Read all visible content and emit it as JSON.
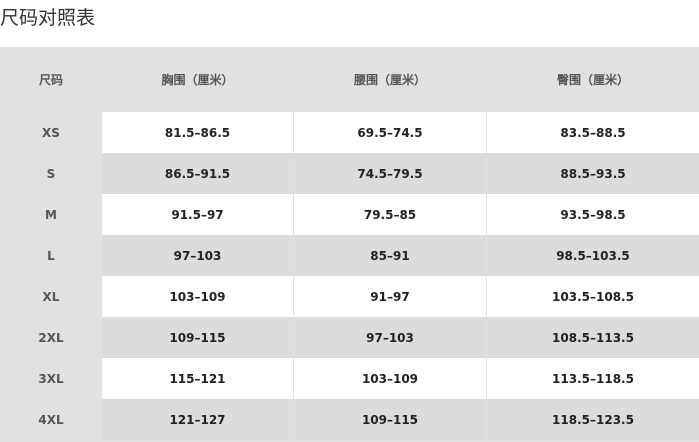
{
  "page": {
    "title": "尺码对照表"
  },
  "table": {
    "headers": [
      "尺码",
      "胸围（厘米）",
      "腰围（厘米）",
      "臀围（厘米）"
    ],
    "rows": [
      [
        "XS",
        "81.5–86.5",
        "69.5–74.5",
        "83.5–88.5"
      ],
      [
        "S",
        "86.5–91.5",
        "74.5–79.5",
        "88.5–93.5"
      ],
      [
        "M",
        "91.5–97",
        "79.5–85",
        "93.5–98.5"
      ],
      [
        "L",
        "97–103",
        "85–91",
        "98.5–103.5"
      ],
      [
        "XL",
        "103–109",
        "91–97",
        "103.5–108.5"
      ],
      [
        "2XL",
        "109–115",
        "97–103",
        "108.5–113.5"
      ],
      [
        "3XL",
        "115–121",
        "103–109",
        "113.5–118.5"
      ],
      [
        "4XL",
        "121–127",
        "109–115",
        "118.5–123.5"
      ]
    ]
  },
  "colors": {
    "panel": "#e1e1e1",
    "row_light": "#ffffff",
    "row_dark": "#dcdcdc",
    "text": "#222222",
    "label": "#555555"
  }
}
